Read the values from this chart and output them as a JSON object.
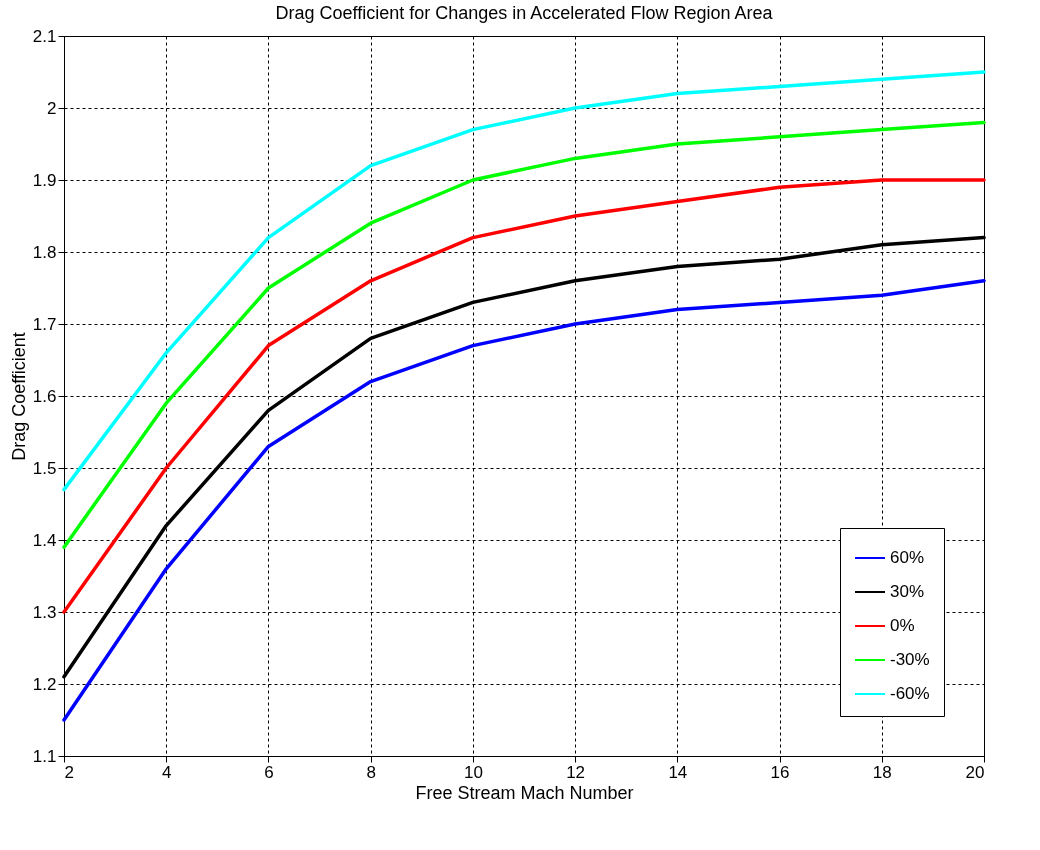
{
  "chart_data": {
    "type": "line",
    "title": "Drag Coefficient for Changes in Accelerated Flow Region Area",
    "xlabel": "Free Stream Mach Number",
    "ylabel": "Drag Coefficient",
    "x": [
      2,
      4,
      6,
      8,
      10,
      12,
      14,
      16,
      18,
      20
    ],
    "series": [
      {
        "name": "60%",
        "color": "#0000ff",
        "values": [
          1.15,
          1.36,
          1.53,
          1.62,
          1.67,
          1.7,
          1.72,
          1.73,
          1.74,
          1.76
        ]
      },
      {
        "name": "30%",
        "color": "#000000",
        "values": [
          1.21,
          1.42,
          1.58,
          1.68,
          1.73,
          1.76,
          1.78,
          1.79,
          1.81,
          1.82
        ]
      },
      {
        "name": "0%",
        "color": "#ff0000",
        "values": [
          1.3,
          1.5,
          1.67,
          1.76,
          1.82,
          1.85,
          1.87,
          1.89,
          1.9,
          1.9
        ]
      },
      {
        "name": "-30%",
        "color": "#00ff00",
        "values": [
          1.39,
          1.59,
          1.75,
          1.84,
          1.9,
          1.93,
          1.95,
          1.96,
          1.97,
          1.98
        ]
      },
      {
        "name": "-60%",
        "color": "#00ffff",
        "values": [
          1.47,
          1.66,
          1.82,
          1.92,
          1.97,
          2.0,
          2.02,
          2.03,
          2.04,
          2.05
        ]
      }
    ],
    "xlim": [
      2,
      20
    ],
    "xticks": [
      2,
      4,
      6,
      8,
      10,
      12,
      14,
      16,
      18,
      20
    ],
    "ylim": [
      1.1,
      2.1
    ],
    "yticks": [
      1.1,
      1.2,
      1.3,
      1.4,
      1.5,
      1.6,
      1.7,
      1.8,
      1.9,
      2,
      2.1
    ],
    "grid": true,
    "legend": "bottom right",
    "marker": "none",
    "line_style": "solid"
  }
}
